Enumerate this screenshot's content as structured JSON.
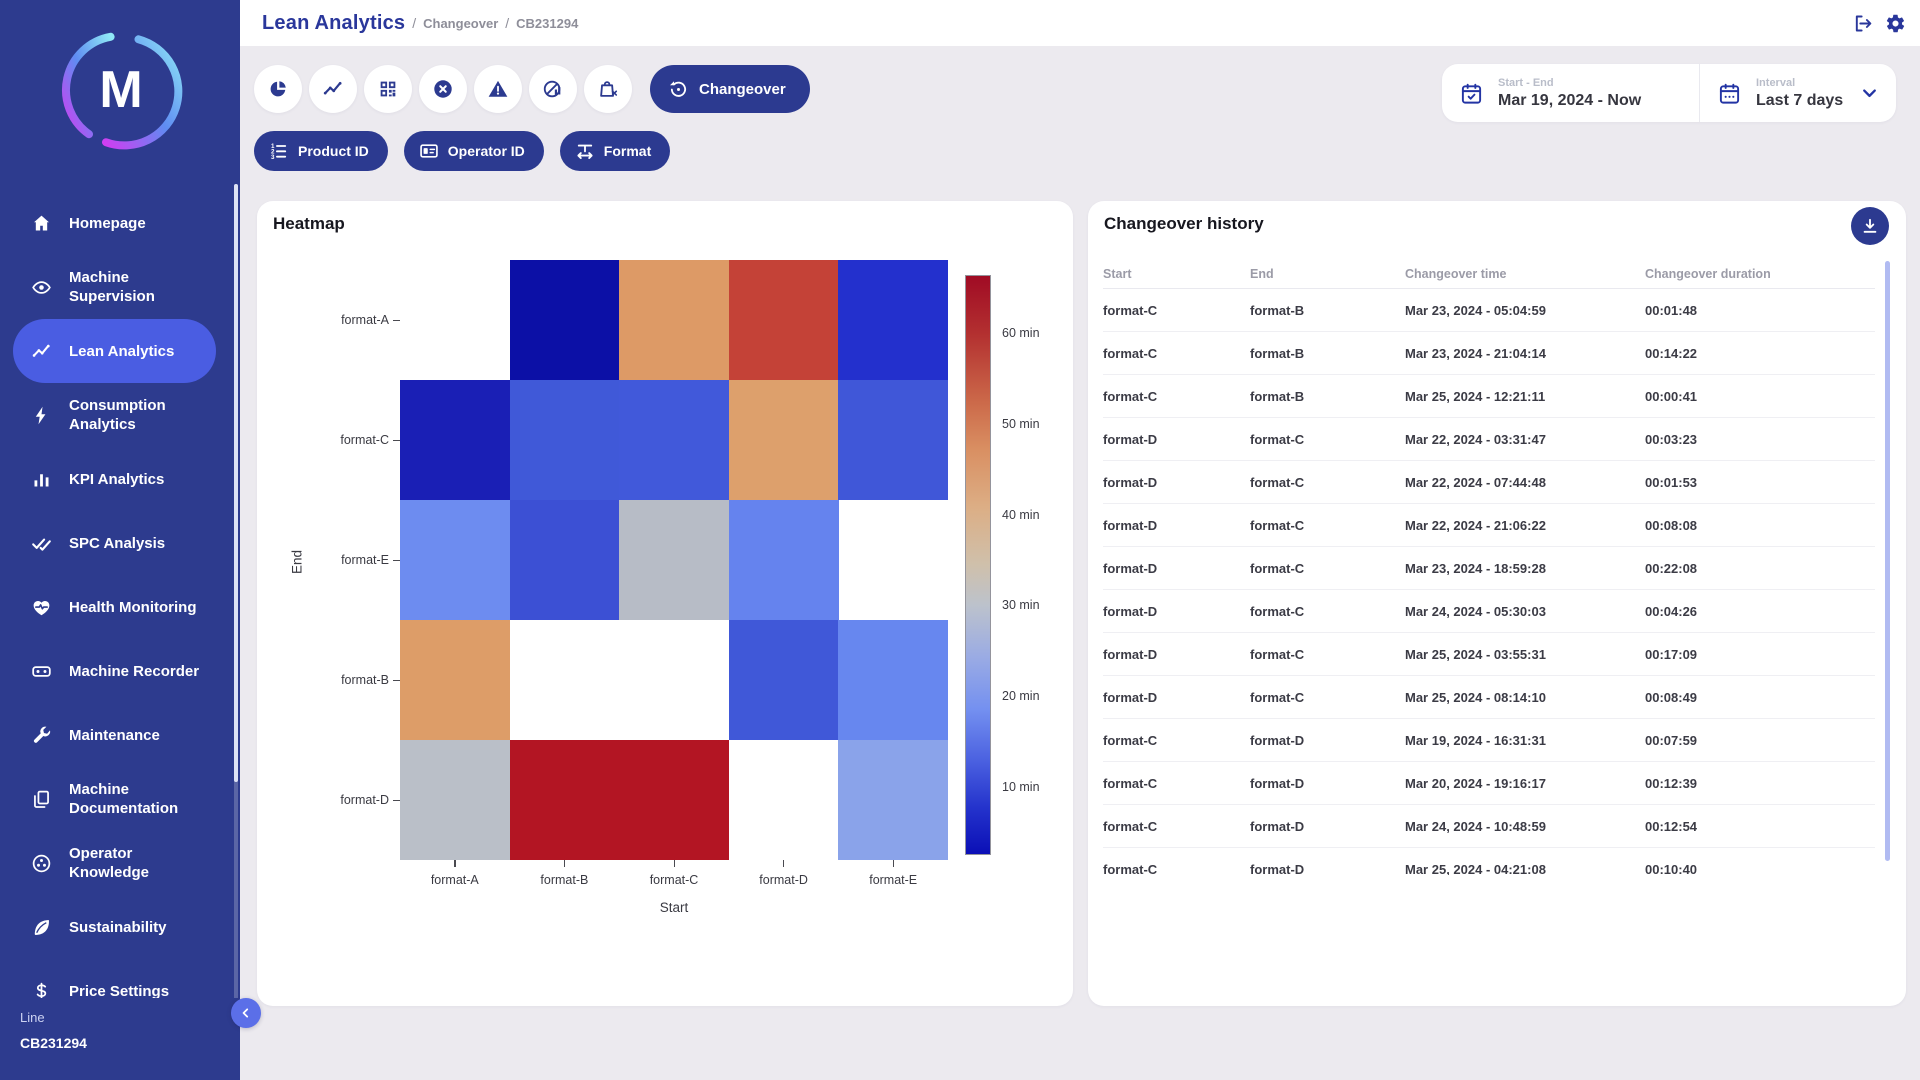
{
  "header": {
    "title": "Lean Analytics",
    "breadcrumbs": [
      "Changeover",
      "CB231294"
    ],
    "separator": "/",
    "actions": [
      {
        "name": "logout-button",
        "icon": "logout-icon"
      },
      {
        "name": "settings-button",
        "icon": "gear-icon"
      }
    ]
  },
  "sidebar": {
    "logo_letter": "M",
    "items": [
      {
        "label": "Homepage",
        "icon": "home-icon",
        "active": false
      },
      {
        "label": "Machine Supervision",
        "icon": "eye-icon",
        "active": false
      },
      {
        "label": "Lean Analytics",
        "icon": "trend-icon",
        "active": true
      },
      {
        "label": "Consumption Analytics",
        "icon": "bolt-icon",
        "active": false
      },
      {
        "label": "KPI Analytics",
        "icon": "bar-chart-icon",
        "active": false
      },
      {
        "label": "SPC Analysis",
        "icon": "double-check-icon",
        "active": false
      },
      {
        "label": "Health Monitoring",
        "icon": "heart-pulse-icon",
        "active": false
      },
      {
        "label": "Machine Recorder",
        "icon": "recorder-icon",
        "active": false
      },
      {
        "label": "Maintenance",
        "icon": "wrench-icon",
        "active": false
      },
      {
        "label": "Machine Documentation",
        "icon": "documents-icon",
        "active": false
      },
      {
        "label": "Operator Knowledge",
        "icon": "operator-icon",
        "active": false
      },
      {
        "label": "Sustainability",
        "icon": "leaf-icon",
        "active": false
      },
      {
        "label": "Price Settings",
        "icon": "dollar-icon",
        "active": false
      }
    ],
    "footer": {
      "label": "Line",
      "value": "CB231294"
    }
  },
  "toolbar": {
    "view_buttons": [
      {
        "name": "pie-chart-view-button",
        "icon": "pie-chart-icon"
      },
      {
        "name": "trend-view-button",
        "icon": "trend-icon"
      },
      {
        "name": "qr-code-view-button",
        "icon": "qr-code-icon"
      },
      {
        "name": "stops-view-button",
        "icon": "x-circle-icon"
      },
      {
        "name": "alerts-view-button",
        "icon": "warning-icon"
      },
      {
        "name": "no-production-view-button",
        "icon": "no-production-icon"
      },
      {
        "name": "empty-orders-view-button",
        "icon": "bag-x-icon"
      }
    ],
    "active_view": {
      "label": "Changeover",
      "icon": "history-icon"
    },
    "filters": [
      {
        "name": "product-id-filter-button",
        "label": "Product ID",
        "icon": "ordered-list-icon"
      },
      {
        "name": "operator-id-filter-button",
        "label": "Operator ID",
        "icon": "id-card-icon"
      },
      {
        "name": "format-filter-button",
        "label": "Format",
        "icon": "format-icon"
      }
    ],
    "date_range": {
      "label": "Start - End",
      "value": "Mar 19, 2024 - Now",
      "icon": "calendar-check-icon"
    },
    "interval": {
      "label": "Interval",
      "value": "Last 7 days",
      "icon": "calendar-dots-icon",
      "chevron": "chevron-down-icon"
    }
  },
  "heatmap_card": {
    "title": "Heatmap",
    "chart_data": {
      "type": "heatmap",
      "xlabel": "Start",
      "ylabel": "End",
      "unit": "min",
      "x_categories": [
        "format-A",
        "format-B",
        "format-C",
        "format-D",
        "format-E"
      ],
      "y_categories": [
        "format-A",
        "format-C",
        "format-E",
        "format-B",
        "format-D"
      ],
      "values_min": [
        [
          null,
          5,
          49,
          58,
          9
        ],
        [
          7,
          15,
          15,
          48,
          15
        ],
        [
          22,
          14,
          34,
          21,
          null
        ],
        [
          48,
          null,
          null,
          15,
          22
        ],
        [
          34,
          64,
          64,
          null,
          26
        ]
      ],
      "cell_colors": [
        [
          null,
          "#0c10a6",
          "#dd9a66",
          "#c44237",
          "#2330cd"
        ],
        [
          "#1a1fb5",
          "#4059d8",
          "#4159da",
          "#dda06c",
          "#4057d8"
        ],
        [
          "#6d8cf0",
          "#3c50d4",
          "#b7bcc6",
          "#6583ee",
          null
        ],
        [
          "#dd9d68",
          null,
          null,
          "#4058d8",
          "#6787ef"
        ],
        [
          "#babfc8",
          "#b31523",
          "#b31523",
          null,
          "#8aa3ea"
        ]
      ],
      "colorbar_ticks": [
        "60 min",
        "50 min",
        "40 min",
        "30 min",
        "20 min",
        "10 min"
      ],
      "colorbar_range_min": [
        4.5,
        68
      ],
      "legend_position": "right",
      "grid": false
    }
  },
  "history_card": {
    "title": "Changeover history",
    "download_button": {
      "name": "download-button",
      "icon": "download-icon"
    },
    "table": {
      "columns": [
        "Start",
        "End",
        "Changeover time",
        "Changeover duration"
      ],
      "rows": [
        [
          "format-C",
          "format-B",
          "Mar 23, 2024 - 05:04:59",
          "00:01:48"
        ],
        [
          "format-C",
          "format-B",
          "Mar 23, 2024 - 21:04:14",
          "00:14:22"
        ],
        [
          "format-C",
          "format-B",
          "Mar 25, 2024 - 12:21:11",
          "00:00:41"
        ],
        [
          "format-D",
          "format-C",
          "Mar 22, 2024 - 03:31:47",
          "00:03:23"
        ],
        [
          "format-D",
          "format-C",
          "Mar 22, 2024 - 07:44:48",
          "00:01:53"
        ],
        [
          "format-D",
          "format-C",
          "Mar 22, 2024 - 21:06:22",
          "00:08:08"
        ],
        [
          "format-D",
          "format-C",
          "Mar 23, 2024 - 18:59:28",
          "00:22:08"
        ],
        [
          "format-D",
          "format-C",
          "Mar 24, 2024 - 05:30:03",
          "00:04:26"
        ],
        [
          "format-D",
          "format-C",
          "Mar 25, 2024 - 03:55:31",
          "00:17:09"
        ],
        [
          "format-D",
          "format-C",
          "Mar 25, 2024 - 08:14:10",
          "00:08:49"
        ],
        [
          "format-C",
          "format-D",
          "Mar 19, 2024 - 16:31:31",
          "00:07:59"
        ],
        [
          "format-C",
          "format-D",
          "Mar 20, 2024 - 19:16:17",
          "00:12:39"
        ],
        [
          "format-C",
          "format-D",
          "Mar 24, 2024 - 10:48:59",
          "00:12:54"
        ],
        [
          "format-C",
          "format-D",
          "Mar 25, 2024 - 04:21:08",
          "00:10:40"
        ]
      ]
    }
  },
  "colors": {
    "accent": "#2c3a90",
    "sidebar_background": "#2d3b8e",
    "active_item": "#4a5de2",
    "page_background": "#eceaef",
    "breadcrumb_title": "#2a379b"
  }
}
